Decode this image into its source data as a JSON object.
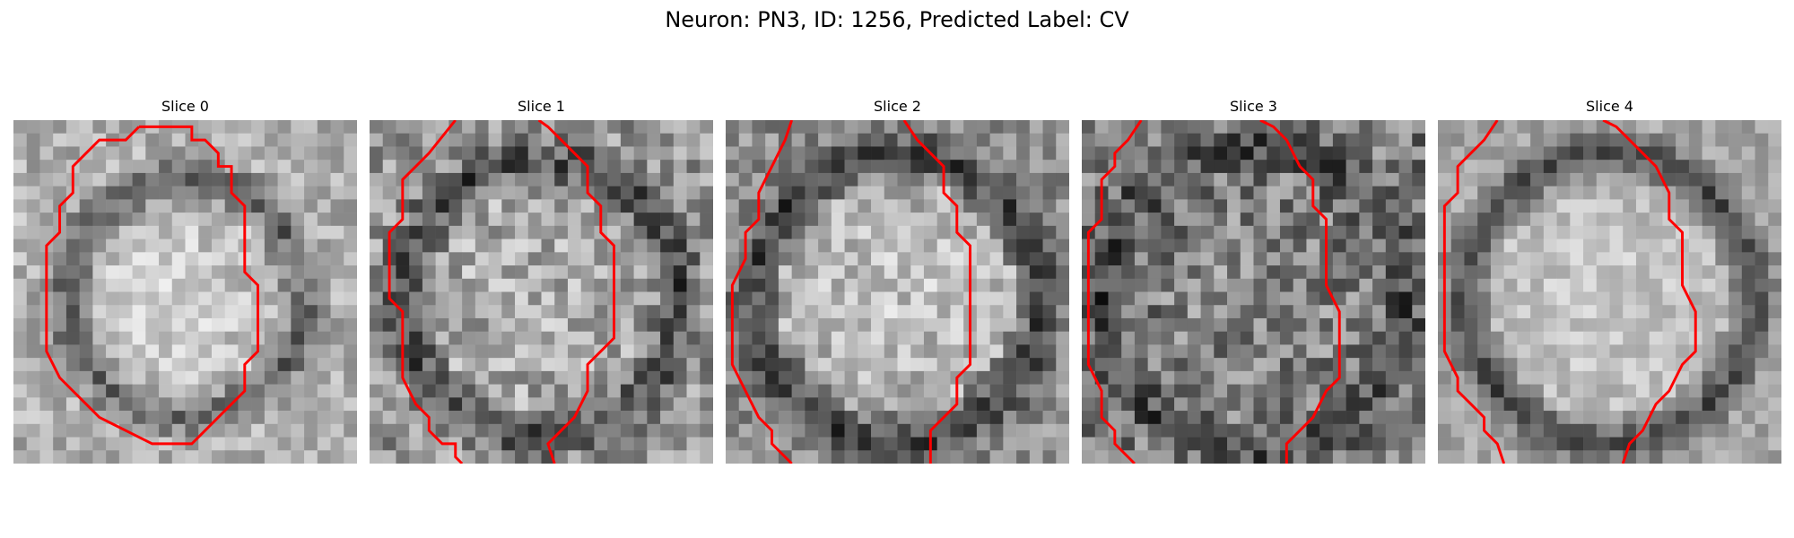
{
  "figure": {
    "title": "Neuron: PN3, ID: 1256, Predicted Label: CV"
  },
  "colors": {
    "contour": "#ff0000",
    "background": "#ffffff"
  },
  "panels": [
    {
      "title": "Slice 0",
      "image_description_icon": "grayscale-microscopy-slice",
      "contour": [
        [
          9.5,
          0.5
        ],
        [
          8.5,
          1.5
        ],
        [
          6.5,
          1.5
        ],
        [
          5.5,
          2.5
        ],
        [
          4.5,
          3.5
        ],
        [
          4.5,
          5.5
        ],
        [
          3.5,
          6.5
        ],
        [
          3.5,
          8.5
        ],
        [
          2.5,
          9.5
        ],
        [
          2.5,
          13.5
        ],
        [
          2.5,
          14.5
        ],
        [
          2.5,
          17.5
        ],
        [
          3.5,
          19.5
        ],
        [
          4.5,
          20.5
        ],
        [
          5.5,
          21.5
        ],
        [
          6.5,
          22.5
        ],
        [
          8.5,
          23.5
        ],
        [
          10.5,
          24.5
        ],
        [
          13.5,
          24.5
        ],
        [
          14.5,
          23.5
        ],
        [
          15.5,
          22.5
        ],
        [
          16.5,
          21.5
        ],
        [
          17.5,
          20.5
        ],
        [
          17.5,
          18.5
        ],
        [
          18.5,
          17.5
        ],
        [
          18.5,
          12.5
        ],
        [
          17.5,
          11.5
        ],
        [
          17.5,
          6.5
        ],
        [
          16.5,
          5.5
        ],
        [
          16.5,
          3.5
        ],
        [
          15.5,
          3.5
        ],
        [
          15.5,
          2.5
        ],
        [
          14.5,
          1.5
        ],
        [
          13.5,
          1.5
        ],
        [
          13.5,
          0.5
        ],
        [
          9.5,
          0.5
        ]
      ]
    },
    {
      "title": "Slice 1",
      "image_description_icon": "grayscale-microscopy-slice",
      "contour_left": [
        [
          6.5,
          0
        ],
        [
          4.5,
          2.5
        ],
        [
          3.5,
          3.5
        ],
        [
          2.5,
          4.5
        ],
        [
          2.5,
          7.5
        ],
        [
          1.5,
          8.5
        ],
        [
          1.5,
          10.5
        ],
        [
          1.5,
          12.5
        ],
        [
          1.5,
          13.5
        ],
        [
          2.5,
          14.5
        ],
        [
          2.5,
          16.5
        ],
        [
          2.5,
          19.5
        ],
        [
          3.5,
          21.5
        ],
        [
          4.5,
          22.5
        ],
        [
          4.5,
          23.5
        ],
        [
          5.5,
          24.5
        ],
        [
          6.5,
          24.5
        ],
        [
          6.5,
          25.5
        ],
        [
          7.0,
          26
        ]
      ],
      "contour_right": [
        [
          12.8,
          0
        ],
        [
          13.5,
          0.5
        ],
        [
          14.5,
          1.5
        ],
        [
          15.5,
          2.5
        ],
        [
          16.5,
          3.5
        ],
        [
          16.5,
          5.5
        ],
        [
          17.5,
          6.5
        ],
        [
          17.5,
          8.5
        ],
        [
          18.5,
          9.5
        ],
        [
          18.5,
          12.5
        ],
        [
          18.5,
          16.5
        ],
        [
          17.5,
          17.5
        ],
        [
          16.5,
          18.5
        ],
        [
          16.5,
          20.5
        ],
        [
          15.5,
          22.5
        ],
        [
          14.5,
          23.5
        ],
        [
          13.5,
          24.5
        ],
        [
          14.0,
          26
        ]
      ]
    },
    {
      "title": "Slice 2",
      "image_description_icon": "grayscale-microscopy-slice",
      "contour_left": [
        [
          5.0,
          0
        ],
        [
          4.5,
          1.5
        ],
        [
          3.5,
          3.5
        ],
        [
          2.5,
          5.5
        ],
        [
          2.5,
          7.5
        ],
        [
          1.5,
          8.5
        ],
        [
          1.5,
          10.5
        ],
        [
          0.5,
          12.5
        ],
        [
          0.5,
          14.5
        ],
        [
          0.5,
          16.5
        ],
        [
          0.5,
          18.5
        ],
        [
          1.5,
          20.5
        ],
        [
          2.5,
          22.5
        ],
        [
          3.5,
          23.5
        ],
        [
          3.5,
          24.5
        ],
        [
          4.5,
          25.5
        ],
        [
          5.0,
          26
        ]
      ],
      "contour_right": [
        [
          13.5,
          0
        ],
        [
          14.5,
          1.5
        ],
        [
          15.5,
          2.5
        ],
        [
          16.5,
          3.5
        ],
        [
          16.5,
          5.5
        ],
        [
          17.5,
          6.5
        ],
        [
          17.5,
          8.5
        ],
        [
          18.5,
          9.5
        ],
        [
          18.5,
          12.5
        ],
        [
          18.5,
          15.5
        ],
        [
          18.5,
          18.5
        ],
        [
          17.5,
          19.5
        ],
        [
          17.5,
          21.5
        ],
        [
          16.5,
          22.5
        ],
        [
          15.5,
          23.5
        ],
        [
          15.5,
          25.5
        ],
        [
          15.5,
          26
        ]
      ]
    },
    {
      "title": "Slice 3",
      "image_description_icon": "grayscale-microscopy-slice",
      "contour_left": [
        [
          4.5,
          0
        ],
        [
          3.5,
          1.5
        ],
        [
          2.5,
          2.5
        ],
        [
          2.5,
          3.5
        ],
        [
          1.5,
          4.5
        ],
        [
          1.5,
          7.5
        ],
        [
          0.5,
          8.5
        ],
        [
          0.5,
          11.5
        ],
        [
          0.5,
          14.5
        ],
        [
          0.5,
          18.5
        ],
        [
          1.5,
          20.5
        ],
        [
          1.5,
          22.5
        ],
        [
          2.5,
          23.5
        ],
        [
          2.5,
          24.5
        ],
        [
          3.5,
          25.5
        ],
        [
          4.0,
          26
        ]
      ],
      "contour_right": [
        [
          13.5,
          0
        ],
        [
          14.5,
          0.5
        ],
        [
          15.5,
          1.5
        ],
        [
          16.5,
          3.5
        ],
        [
          17.5,
          4.5
        ],
        [
          17.5,
          6.5
        ],
        [
          18.5,
          7.5
        ],
        [
          18.5,
          12.5
        ],
        [
          19.5,
          14.5
        ],
        [
          19.5,
          19.5
        ],
        [
          18.5,
          20.5
        ],
        [
          17.5,
          22.5
        ],
        [
          16.5,
          23.5
        ],
        [
          15.5,
          24.5
        ],
        [
          15.5,
          26
        ]
      ]
    },
    {
      "title": "Slice 4",
      "image_description_icon": "grayscale-microscopy-slice",
      "contour_left": [
        [
          4.5,
          0
        ],
        [
          3.5,
          1.5
        ],
        [
          2.5,
          2.5
        ],
        [
          1.5,
          3.5
        ],
        [
          1.5,
          5.5
        ],
        [
          0.5,
          6.5
        ],
        [
          0.5,
          9.5
        ],
        [
          0.5,
          13.5
        ],
        [
          0.5,
          17.5
        ],
        [
          1.5,
          19.5
        ],
        [
          1.5,
          20.5
        ],
        [
          2.5,
          21.5
        ],
        [
          3.5,
          22.5
        ],
        [
          3.5,
          23.5
        ],
        [
          4.5,
          24.5
        ],
        [
          5.0,
          26
        ]
      ],
      "contour_right": [
        [
          12.5,
          0
        ],
        [
          13.5,
          0.5
        ],
        [
          14.5,
          1.5
        ],
        [
          15.5,
          2.5
        ],
        [
          16.5,
          3.5
        ],
        [
          17.5,
          5.5
        ],
        [
          17.5,
          7.5
        ],
        [
          18.5,
          8.5
        ],
        [
          18.5,
          12.5
        ],
        [
          19.5,
          14.5
        ],
        [
          19.5,
          17.5
        ],
        [
          18.5,
          18.5
        ],
        [
          17.5,
          20.5
        ],
        [
          16.5,
          21.5
        ],
        [
          15.5,
          23.5
        ],
        [
          14.5,
          24.5
        ],
        [
          14.0,
          26
        ]
      ]
    }
  ]
}
